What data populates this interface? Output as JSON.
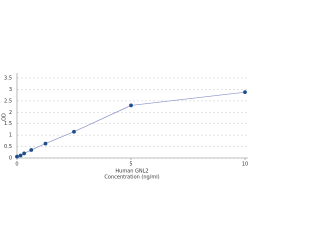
{
  "chart_data": {
    "type": "line",
    "x": [
      0,
      0.156,
      0.313,
      0.625,
      1.25,
      2.5,
      5,
      10
    ],
    "series": [
      {
        "name": "Human GNL2",
        "color": "#1f4e8c",
        "line_color": "#8a93c8",
        "values": [
          0.06,
          0.11,
          0.2,
          0.35,
          0.63,
          1.15,
          2.3,
          2.88
        ]
      }
    ],
    "xlim": [
      0,
      10
    ],
    "xticks": [
      0,
      5,
      10
    ],
    "ylim": [
      0,
      3.5
    ],
    "yticks": [
      0,
      0.5,
      1,
      1.5,
      2,
      2.5,
      3,
      3.5
    ],
    "ylabel": "OD",
    "xlabel": [
      "Human GNL2",
      "Concentration (ng/ml)"
    ],
    "grid": true
  }
}
